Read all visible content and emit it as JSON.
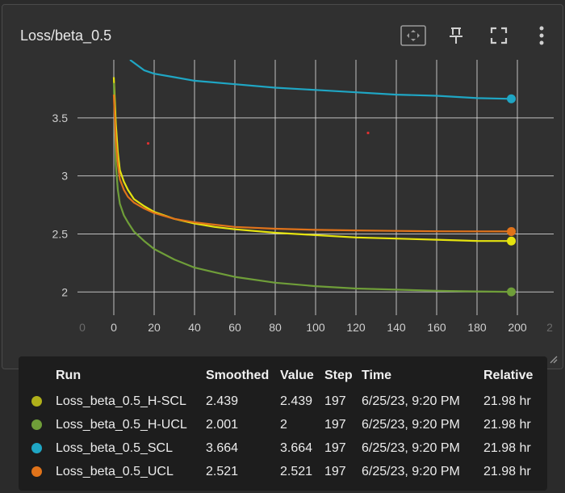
{
  "card": {
    "title": "Loss/beta_0.5",
    "icons": [
      "fit-domain-icon",
      "pin-icon",
      "fullscreen-icon",
      "more-vert-icon"
    ]
  },
  "chart_data": {
    "type": "line",
    "xlabel": "",
    "ylabel": "",
    "xlim": [
      -18,
      218
    ],
    "ylim": [
      1.8,
      4.0
    ],
    "x_ticks": [
      0,
      20,
      40,
      60,
      80,
      100,
      120,
      140,
      160,
      180,
      200
    ],
    "x_tick_labels": [
      "0",
      "20",
      "40",
      "60",
      "80",
      "100",
      "120",
      "140",
      "160",
      "180",
      "200"
    ],
    "x_faded_tick_labels": [
      "0",
      "2"
    ],
    "y_ticks": [
      2,
      2.5,
      3,
      3.5
    ],
    "y_tick_labels": [
      "2",
      "2.5",
      "3",
      "3.5"
    ],
    "grid": true,
    "series": [
      {
        "name": "Loss_beta_0.5_H-SCL",
        "color": "#e5e30f",
        "x": [
          0,
          1,
          2,
          3,
          5,
          7,
          10,
          15,
          20,
          30,
          40,
          50,
          60,
          80,
          100,
          120,
          140,
          160,
          180,
          197
        ],
        "y": [
          3.85,
          3.45,
          3.2,
          3.05,
          2.95,
          2.88,
          2.8,
          2.74,
          2.69,
          2.63,
          2.59,
          2.56,
          2.54,
          2.51,
          2.49,
          2.47,
          2.46,
          2.45,
          2.44,
          2.439
        ]
      },
      {
        "name": "Loss_beta_0.5_H-UCL",
        "color": "#6f9e39",
        "x": [
          0,
          1,
          2,
          3,
          5,
          7,
          10,
          15,
          20,
          30,
          40,
          50,
          60,
          80,
          100,
          120,
          140,
          160,
          180,
          197
        ],
        "y": [
          3.8,
          3.1,
          2.88,
          2.76,
          2.66,
          2.6,
          2.52,
          2.44,
          2.37,
          2.28,
          2.21,
          2.17,
          2.13,
          2.08,
          2.05,
          2.03,
          2.02,
          2.01,
          2.005,
          2.001
        ]
      },
      {
        "name": "Loss_beta_0.5_SCL",
        "color": "#1fa6c4",
        "x": [
          8,
          15,
          20,
          30,
          40,
          60,
          80,
          100,
          120,
          140,
          160,
          180,
          197
        ],
        "y": [
          4.0,
          3.91,
          3.88,
          3.85,
          3.82,
          3.79,
          3.76,
          3.74,
          3.72,
          3.7,
          3.69,
          3.67,
          3.664
        ]
      },
      {
        "name": "Loss_beta_0.5_UCL",
        "color": "#e0731a",
        "x": [
          0,
          1,
          2,
          3,
          5,
          7,
          10,
          15,
          20,
          30,
          40,
          50,
          60,
          80,
          100,
          120,
          140,
          160,
          180,
          197
        ],
        "y": [
          3.7,
          3.3,
          3.1,
          2.97,
          2.88,
          2.82,
          2.77,
          2.72,
          2.68,
          2.63,
          2.6,
          2.58,
          2.56,
          2.545,
          2.535,
          2.53,
          2.526,
          2.523,
          2.522,
          2.521
        ]
      }
    ],
    "markers": [
      {
        "x": 17,
        "y": 3.28,
        "color": "#e03030"
      },
      {
        "x": 126,
        "y": 3.37,
        "color": "#e03030"
      }
    ]
  },
  "legend": {
    "headers": {
      "run": "Run",
      "smoothed": "Smoothed",
      "value": "Value",
      "step": "Step",
      "time": "Time",
      "relative": "Relative"
    },
    "rows": [
      {
        "run": "Loss_beta_0.5_H-SCL",
        "smoothed": "2.439",
        "value": "2.439",
        "step": "197",
        "time": "6/25/23, 9:20 PM",
        "relative": "21.98 hr",
        "color": "#b0b01a"
      },
      {
        "run": "Loss_beta_0.5_H-UCL",
        "smoothed": "2.001",
        "value": "2",
        "step": "197",
        "time": "6/25/23, 9:20 PM",
        "relative": "21.98 hr",
        "color": "#6f9e39"
      },
      {
        "run": "Loss_beta_0.5_SCL",
        "smoothed": "3.664",
        "value": "3.664",
        "step": "197",
        "time": "6/25/23, 9:20 PM",
        "relative": "21.98 hr",
        "color": "#1fa6c4"
      },
      {
        "run": "Loss_beta_0.5_UCL",
        "smoothed": "2.521",
        "value": "2.521",
        "step": "197",
        "time": "6/25/23, 9:20 PM",
        "relative": "21.98 hr",
        "color": "#e0731a"
      }
    ]
  }
}
